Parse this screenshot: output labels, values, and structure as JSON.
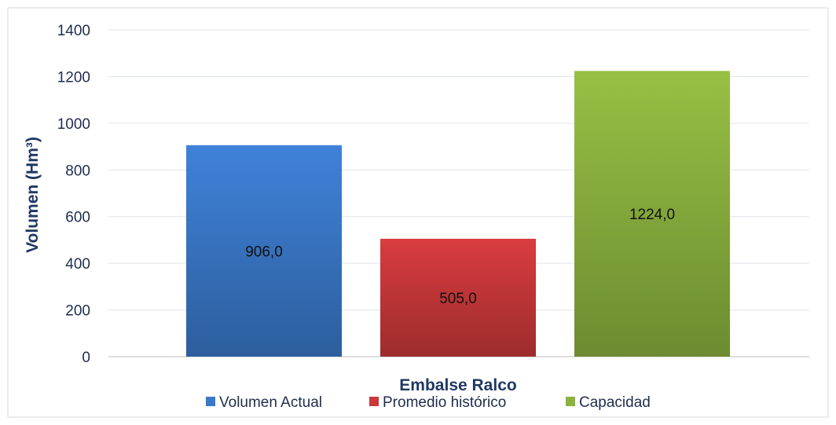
{
  "chart_data": {
    "type": "bar",
    "categories": [
      "Volumen Actual",
      "Promedio histórico",
      "Capacidad"
    ],
    "values": [
      906.0,
      505.0,
      1224.0
    ],
    "data_labels": [
      "906,0",
      "505,0",
      "1224,0"
    ],
    "colors": [
      "#3a78c9",
      "#c9383a",
      "#8cb23f"
    ],
    "xlabel": "Embalse Ralco",
    "ylabel": "Volumen  (Hm³)",
    "ylim": [
      0,
      1400
    ],
    "yticks": [
      0,
      200,
      400,
      600,
      800,
      1000,
      1200,
      1400
    ],
    "grid": true,
    "legend": {
      "placement": "bottom",
      "entries": [
        "Volumen Actual",
        "Promedio histórico",
        "Capacidad"
      ]
    }
  }
}
